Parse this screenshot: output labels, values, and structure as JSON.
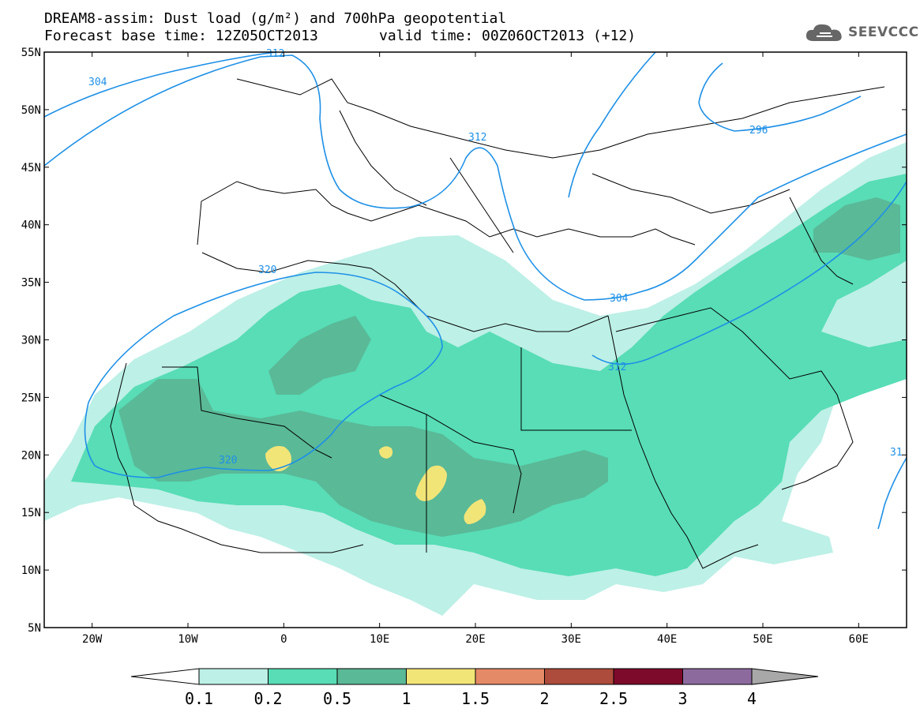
{
  "header": {
    "title_line1": "DREAM8-assim: Dust load (g/m²) and 700hPa geopotential",
    "base_time": "Forecast base time: 12Z05OCT2013",
    "valid_time": "valid time: 00Z06OCT2013 (+12)",
    "logo_text": "SEEVCCC"
  },
  "axes": {
    "lat_labels": [
      "55N",
      "50N",
      "45N",
      "40N",
      "35N",
      "30N",
      "25N",
      "20N",
      "15N",
      "10N",
      "5N"
    ],
    "lon_labels": [
      "20W",
      "10W",
      "0",
      "10E",
      "20E",
      "30E",
      "40E",
      "50E",
      "60E"
    ]
  },
  "contours": {
    "labels": [
      "304",
      "312",
      "312",
      "296",
      "320",
      "320",
      "304",
      "312",
      "31"
    ]
  },
  "colorbar": {
    "labels": [
      "0.1",
      "0.2",
      "0.5",
      "1",
      "1.5",
      "2",
      "2.5",
      "3",
      "4"
    ],
    "colors": [
      "#ffffff",
      "#bdf0e7",
      "#58ddb6",
      "#5ab997",
      "#f2e578",
      "#e58a66",
      "#ad4b3c",
      "#7d0a2a",
      "#8c6a9e",
      "#a8a8a8"
    ]
  },
  "map_colors": {
    "level_01": "#bdf0e7",
    "level_02": "#58ddb6",
    "level_05": "#5ab997",
    "level_1": "#f2e578",
    "contour": "#1e90e6"
  }
}
